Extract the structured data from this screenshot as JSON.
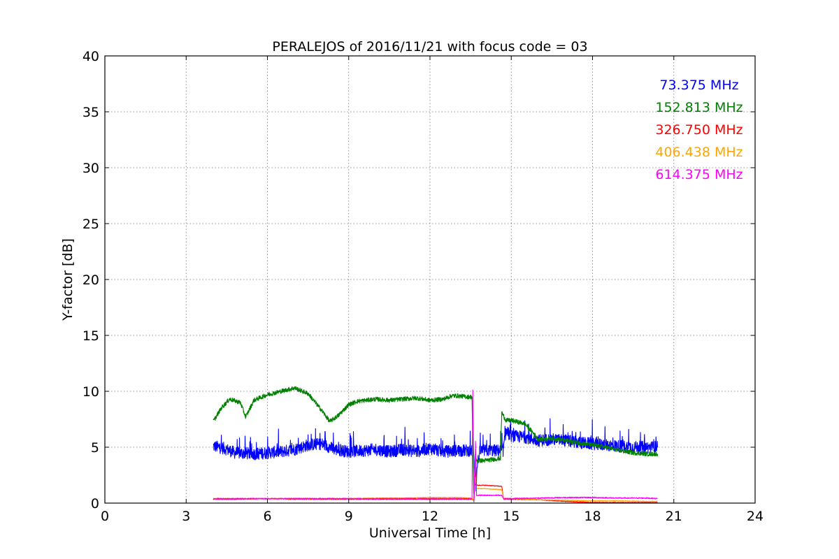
{
  "chart_data": {
    "type": "line",
    "title": "PERALEJOS of 2016/11/21 with focus code = 03",
    "xlabel": "Universal Time [h]",
    "ylabel": "Y-factor [dB]",
    "xlim": [
      0,
      24
    ],
    "ylim": [
      0,
      40
    ],
    "xticks": [
      "0",
      "3",
      "6",
      "9",
      "12",
      "15",
      "18",
      "21",
      "24"
    ],
    "yticks": [
      "0",
      "5",
      "10",
      "15",
      "20",
      "25",
      "30",
      "35",
      "40"
    ],
    "grid": true,
    "legend_position": "top-right",
    "series": [
      {
        "name": "73.375 MHz",
        "color": "#0000ff",
        "noise": 0.55,
        "x": [
          4.0,
          4.4,
          4.8,
          5.5,
          6.0,
          6.5,
          7.0,
          7.5,
          8.0,
          8.5,
          9.0,
          9.5,
          10.0,
          10.5,
          11.0,
          11.5,
          12.0,
          12.5,
          13.0,
          13.5,
          13.6,
          13.7,
          13.75,
          13.85,
          14.0,
          14.7,
          14.8,
          15.0,
          15.5,
          16.0,
          16.5,
          17.0,
          17.5,
          18.0,
          18.5,
          19.0,
          19.5,
          20.0,
          20.4
        ],
        "y": [
          5.1,
          4.9,
          4.5,
          4.4,
          4.5,
          4.6,
          4.8,
          5.2,
          5.3,
          4.8,
          4.6,
          4.7,
          4.8,
          4.6,
          4.8,
          4.6,
          4.9,
          4.6,
          4.7,
          4.7,
          4.6,
          1.5,
          3.5,
          4.7,
          4.7,
          4.7,
          6.4,
          6.0,
          5.9,
          5.6,
          5.7,
          5.6,
          5.4,
          5.3,
          5.2,
          5.1,
          5.0,
          5.0,
          5.0
        ]
      },
      {
        "name": "152.813 MHz",
        "color": "#008000",
        "noise": 0.2,
        "x": [
          4.0,
          4.3,
          4.6,
          5.0,
          5.2,
          5.5,
          6.0,
          6.5,
          7.0,
          7.5,
          8.0,
          8.3,
          8.6,
          9.0,
          9.3,
          10.0,
          10.5,
          11.0,
          11.5,
          12.0,
          12.5,
          12.8,
          13.0,
          13.4,
          13.55,
          13.62,
          13.7,
          13.8,
          14.0,
          14.6,
          14.65,
          14.8,
          15.0,
          15.5,
          15.8,
          16.0,
          16.5,
          17.0,
          17.5,
          18.0,
          18.5,
          19.0,
          19.5,
          20.0,
          20.4
        ],
        "y": [
          7.3,
          8.5,
          9.3,
          9.0,
          7.7,
          9.2,
          9.7,
          10.0,
          10.3,
          9.8,
          8.3,
          7.3,
          7.8,
          8.8,
          9.1,
          9.3,
          9.2,
          9.3,
          9.4,
          9.2,
          9.3,
          9.6,
          9.6,
          9.5,
          9.5,
          0.2,
          3.8,
          3.8,
          3.8,
          4.0,
          8.1,
          7.4,
          7.4,
          7.1,
          6.3,
          5.7,
          5.8,
          5.6,
          5.4,
          5.2,
          5.0,
          4.7,
          4.5,
          4.4,
          4.4
        ]
      },
      {
        "name": "326.750 MHz",
        "color": "#ff0000",
        "noise": 0.03,
        "x": [
          4.0,
          5.0,
          6.0,
          7.0,
          8.0,
          9.0,
          10.0,
          11.0,
          12.0,
          13.0,
          13.5,
          13.6,
          13.68,
          13.72,
          14.0,
          14.65,
          14.72,
          15.0,
          16.0,
          17.0,
          18.0,
          19.0,
          20.0,
          20.4
        ],
        "y": [
          0.35,
          0.35,
          0.4,
          0.35,
          0.35,
          0.35,
          0.35,
          0.35,
          0.35,
          0.35,
          0.35,
          0.3,
          2.6,
          1.6,
          1.6,
          1.5,
          0.35,
          0.35,
          0.3,
          0.15,
          0.05,
          0.05,
          0.05,
          0.05
        ]
      },
      {
        "name": "406.438 MHz",
        "color": "#ffa500",
        "noise": 0.03,
        "x": [
          4.0,
          5.0,
          6.0,
          7.0,
          8.0,
          9.0,
          10.0,
          11.0,
          12.0,
          13.0,
          13.5,
          13.6,
          13.68,
          13.72,
          14.0,
          14.65,
          14.72,
          15.0,
          16.0,
          17.0,
          18.0,
          19.0,
          20.0,
          20.4
        ],
        "y": [
          0.4,
          0.4,
          0.4,
          0.4,
          0.4,
          0.4,
          0.45,
          0.45,
          0.5,
          0.5,
          0.45,
          0.3,
          2.3,
          1.3,
          1.3,
          1.2,
          0.4,
          0.4,
          0.3,
          0.25,
          0.2,
          0.2,
          0.15,
          0.15
        ]
      },
      {
        "name": "614.375 MHz",
        "color": "#ff00ff",
        "noise": 0.05,
        "x": [
          4.0,
          5.0,
          6.0,
          7.0,
          8.0,
          9.0,
          10.0,
          11.0,
          12.0,
          13.0,
          13.55,
          13.58,
          13.63,
          13.68,
          13.72,
          14.0,
          14.65,
          14.72,
          15.0,
          16.0,
          17.0,
          18.0,
          19.0,
          20.0,
          20.4
        ],
        "y": [
          0.4,
          0.4,
          0.4,
          0.4,
          0.4,
          0.4,
          0.4,
          0.4,
          0.4,
          0.4,
          0.4,
          10.1,
          0.3,
          5.5,
          0.7,
          0.7,
          0.7,
          0.4,
          0.4,
          0.45,
          0.5,
          0.5,
          0.45,
          0.45,
          0.4
        ]
      }
    ]
  }
}
